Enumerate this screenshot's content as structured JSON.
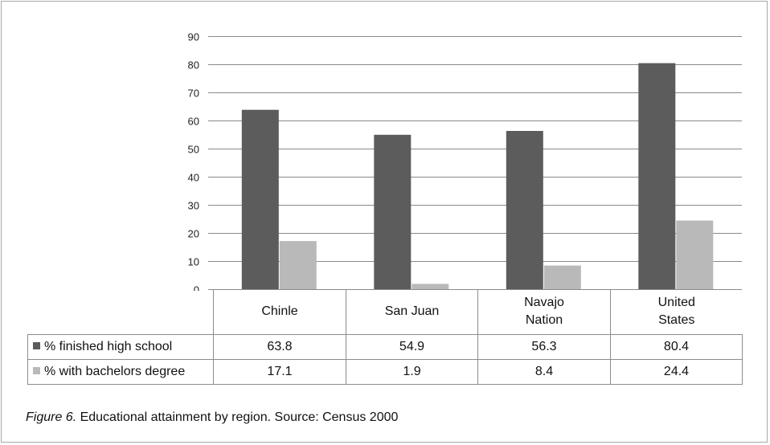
{
  "chart_data": {
    "type": "bar",
    "categories": [
      "Chinle",
      "San Juan",
      "Navajo Nation",
      "United States"
    ],
    "category_lines": [
      [
        "Chinle"
      ],
      [
        "San Juan"
      ],
      [
        "Navajo",
        "Nation"
      ],
      [
        "United",
        "States"
      ]
    ],
    "series": [
      {
        "name": "% finished high school",
        "values": [
          "63.8",
          "54.9",
          "56.3",
          "80.4"
        ],
        "color": "#5c5c5c"
      },
      {
        "name": "% with bachelors degree",
        "values": [
          "17.1",
          "1.9",
          "8.4",
          "24.4"
        ],
        "color": "#b9b9b9"
      }
    ],
    "ylim": [
      0,
      90
    ],
    "yticks": [
      "0",
      "10",
      "20",
      "30",
      "40",
      "50",
      "60",
      "70",
      "80",
      "90"
    ],
    "grid": true,
    "legend": "data-table",
    "title": "",
    "xlabel": "",
    "ylabel": ""
  },
  "caption": {
    "figure_label": "Figure 6.",
    "text": " Educational attainment by region. Source: Census 2000"
  }
}
